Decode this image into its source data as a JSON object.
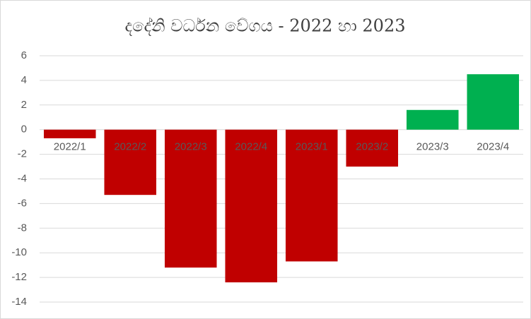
{
  "chart_data": {
    "type": "bar",
    "title": "දදේනි වර්ධන වේගය - 2022 හා 2023",
    "categories": [
      "2022/1",
      "2022/2",
      "2022/3",
      "2022/4",
      "2023/1",
      "2023/2",
      "2023/3",
      "2023/4"
    ],
    "values": [
      -0.7,
      -5.3,
      -11.2,
      -12.4,
      -10.7,
      -3.0,
      1.6,
      4.5
    ],
    "colors": [
      "#c00000",
      "#c00000",
      "#c00000",
      "#c00000",
      "#c00000",
      "#c00000",
      "#00b050",
      "#00b050"
    ],
    "ylim": [
      -14,
      6
    ],
    "yticks": [
      -14,
      -12,
      -10,
      -8,
      -6,
      -4,
      -2,
      0,
      2,
      4,
      6
    ],
    "grid": true
  }
}
